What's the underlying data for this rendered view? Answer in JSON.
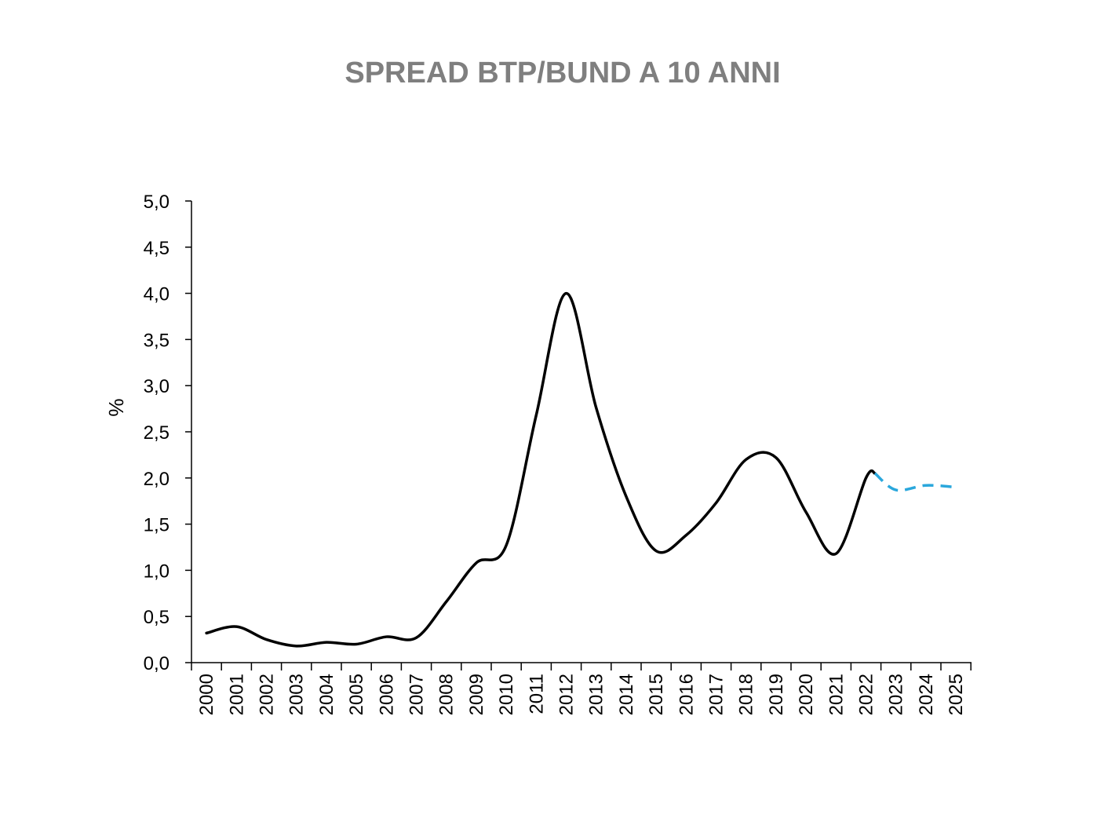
{
  "chart_data": {
    "type": "line",
    "title": "SPREAD BTP/BUND A 10 ANNI",
    "xlabel": "",
    "ylabel": "%",
    "ylim": [
      0,
      5
    ],
    "y_ticks": [
      "0,0",
      "0,5",
      "1,0",
      "1,5",
      "2,0",
      "2,5",
      "3,0",
      "3,5",
      "4,0",
      "4,5",
      "5,0"
    ],
    "categories": [
      "2000",
      "2001",
      "2002",
      "2003",
      "2004",
      "2005",
      "2006",
      "2007",
      "2008",
      "2009",
      "2010",
      "2011",
      "2012",
      "2013",
      "2014",
      "2015",
      "2016",
      "2017",
      "2018",
      "2019",
      "2020",
      "2021",
      "2022",
      "2023",
      "2024",
      "2025"
    ],
    "grid": false,
    "legend": "none",
    "series": [
      {
        "style": "solid",
        "color": "#000000",
        "points": [
          {
            "x": 0.0,
            "y": 0.32
          },
          {
            "x": 1.0,
            "y": 0.39
          },
          {
            "x": 2.0,
            "y": 0.25
          },
          {
            "x": 3.0,
            "y": 0.18
          },
          {
            "x": 4.0,
            "y": 0.22
          },
          {
            "x": 5.0,
            "y": 0.2
          },
          {
            "x": 6.0,
            "y": 0.28
          },
          {
            "x": 7.0,
            "y": 0.27
          },
          {
            "x": 8.0,
            "y": 0.66
          },
          {
            "x": 9.0,
            "y": 1.08
          },
          {
            "x": 10.0,
            "y": 1.27
          },
          {
            "x": 11.0,
            "y": 2.68
          },
          {
            "x": 12.0,
            "y": 4.0
          },
          {
            "x": 13.0,
            "y": 2.76
          },
          {
            "x": 14.0,
            "y": 1.8
          },
          {
            "x": 15.0,
            "y": 1.21
          },
          {
            "x": 16.0,
            "y": 1.38
          },
          {
            "x": 17.0,
            "y": 1.73
          },
          {
            "x": 18.0,
            "y": 2.2
          },
          {
            "x": 19.0,
            "y": 2.22
          },
          {
            "x": 20.0,
            "y": 1.63
          },
          {
            "x": 21.0,
            "y": 1.18
          },
          {
            "x": 22.0,
            "y": 2.0
          },
          {
            "x": 22.3,
            "y": 2.05
          }
        ]
      },
      {
        "style": "dashed",
        "color": "#2aa7dc",
        "points": [
          {
            "x": 22.3,
            "y": 2.05
          },
          {
            "x": 23.0,
            "y": 1.87
          },
          {
            "x": 24.0,
            "y": 1.92
          },
          {
            "x": 25.0,
            "y": 1.9
          }
        ]
      }
    ]
  }
}
